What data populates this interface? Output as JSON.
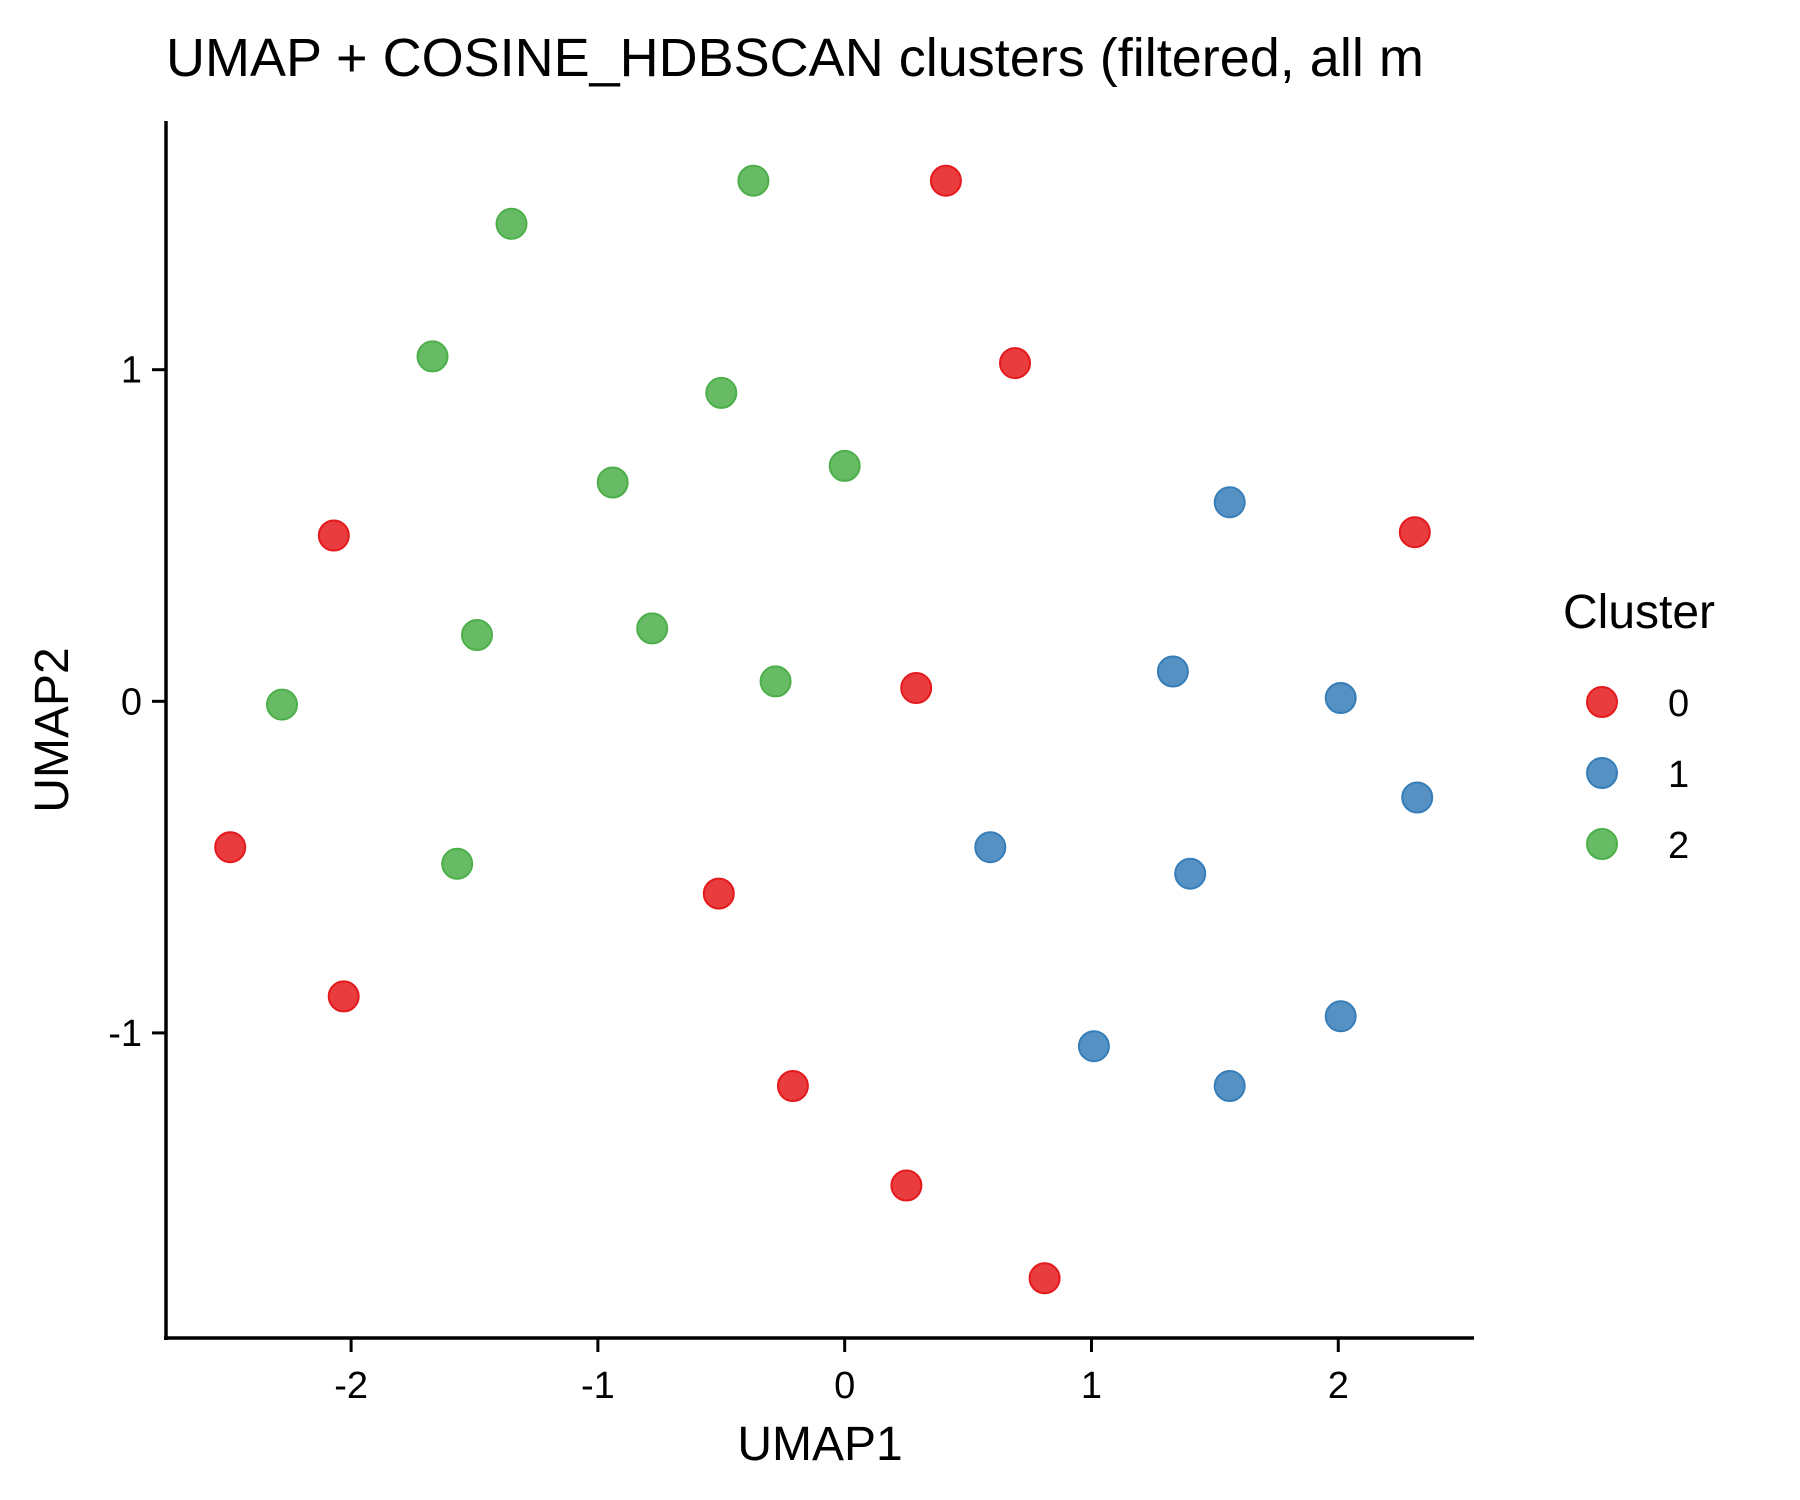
{
  "chart_data": {
    "type": "scatter",
    "title": "UMAP + COSINE_HDBSCAN clusters (filtered, all m",
    "xlabel": "UMAP1",
    "ylabel": "UMAP2",
    "xlim": [
      -2.75,
      2.55
    ],
    "ylim": [
      -1.92,
      1.75
    ],
    "xticks": [
      -2,
      -1,
      0,
      1,
      2
    ],
    "yticks": [
      -1,
      0,
      1
    ],
    "xtick_labels": [
      "-2",
      "-1",
      "0",
      "1",
      "2"
    ],
    "ytick_labels": [
      "-1",
      "0",
      "1"
    ],
    "grid": false,
    "legend": {
      "title": "Cluster",
      "position": "right"
    },
    "series": [
      {
        "name": "0",
        "color": "#e41a1c",
        "points": [
          {
            "x": 0.41,
            "y": 1.57
          },
          {
            "x": 0.69,
            "y": 1.02
          },
          {
            "x": 2.31,
            "y": 0.51
          },
          {
            "x": -2.07,
            "y": 0.5
          },
          {
            "x": 0.29,
            "y": 0.04
          },
          {
            "x": -2.49,
            "y": -0.44
          },
          {
            "x": -0.51,
            "y": -0.58
          },
          {
            "x": -2.03,
            "y": -0.89
          },
          {
            "x": -0.21,
            "y": -1.16
          },
          {
            "x": 0.25,
            "y": -1.46
          },
          {
            "x": 0.81,
            "y": -1.74
          }
        ]
      },
      {
        "name": "1",
        "color": "#377eb8",
        "points": [
          {
            "x": 1.56,
            "y": 0.6
          },
          {
            "x": 1.33,
            "y": 0.09
          },
          {
            "x": 2.01,
            "y": 0.01
          },
          {
            "x": 2.32,
            "y": -0.29
          },
          {
            "x": 0.59,
            "y": -0.44
          },
          {
            "x": 1.4,
            "y": -0.52
          },
          {
            "x": 2.01,
            "y": -0.95
          },
          {
            "x": 1.01,
            "y": -1.04
          },
          {
            "x": 1.56,
            "y": -1.16
          }
        ]
      },
      {
        "name": "2",
        "color": "#4daf4a",
        "points": [
          {
            "x": -0.37,
            "y": 1.57
          },
          {
            "x": -1.35,
            "y": 1.44
          },
          {
            "x": -1.67,
            "y": 1.04
          },
          {
            "x": -0.5,
            "y": 0.93
          },
          {
            "x": -0.94,
            "y": 0.66
          },
          {
            "x": 0.0,
            "y": 0.71
          },
          {
            "x": -0.78,
            "y": 0.22
          },
          {
            "x": -1.49,
            "y": 0.2
          },
          {
            "x": -0.28,
            "y": 0.06
          },
          {
            "x": -2.28,
            "y": -0.01
          },
          {
            "x": -1.57,
            "y": -0.49
          }
        ]
      }
    ]
  }
}
